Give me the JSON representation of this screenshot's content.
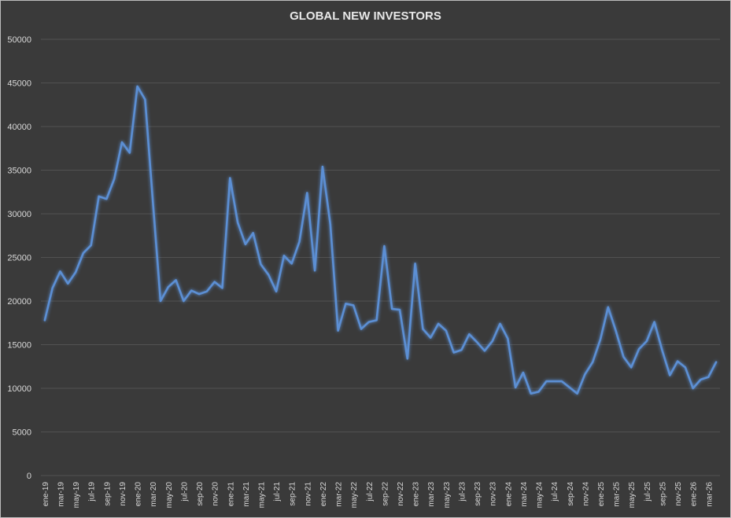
{
  "chart_data": {
    "type": "line",
    "title": "GLOBAL NEW INVESTORS",
    "xlabel": "",
    "ylabel": "",
    "ylim": [
      0,
      50000
    ],
    "y_ticks": [
      0,
      5000,
      10000,
      15000,
      20000,
      25000,
      30000,
      35000,
      40000,
      45000,
      50000
    ],
    "grid": true,
    "legend": "none",
    "line_color": "#5b8fd4",
    "x": [
      "ene-19",
      "feb-19",
      "mar-19",
      "abr-19",
      "may-19",
      "jun-19",
      "jul-19",
      "ago-19",
      "sep-19",
      "oct-19",
      "nov-19",
      "dic-19",
      "ene-20",
      "feb-20",
      "mar-20",
      "abr-20",
      "may-20",
      "jun-20",
      "jul-20",
      "ago-20",
      "sep-20",
      "oct-20",
      "nov-20",
      "dic-20",
      "ene-21",
      "feb-21",
      "mar-21",
      "abr-21",
      "may-21",
      "jun-21",
      "jul-21",
      "ago-21",
      "sep-21",
      "oct-21",
      "nov-21",
      "dic-21",
      "ene-22",
      "feb-22",
      "mar-22",
      "abr-22",
      "may-22",
      "jun-22",
      "jul-22",
      "ago-22",
      "sep-22",
      "oct-22",
      "nov-22",
      "dic-22",
      "ene-23",
      "feb-23",
      "mar-23",
      "abr-23",
      "may-23",
      "jun-23",
      "jul-23",
      "ago-23",
      "sep-23",
      "oct-23",
      "nov-23",
      "dic-23",
      "ene-24",
      "feb-24",
      "mar-24",
      "abr-24",
      "may-24",
      "jun-24",
      "jul-24",
      "ago-24",
      "sep-24",
      "oct-24",
      "nov-24",
      "dic-24",
      "ene-25",
      "feb-25",
      "mar-25",
      "abr-25",
      "may-25",
      "jun-25",
      "jul-25",
      "ago-25",
      "sep-25",
      "oct-25",
      "nov-25",
      "dic-25",
      "ene-26",
      "feb-26",
      "mar-26",
      "abr-26"
    ],
    "x_tick_labels": [
      "ene-19",
      "mar-19",
      "may-19",
      "jul-19",
      "sep-19",
      "nov-19",
      "ene-20",
      "mar-20",
      "may-20",
      "jul-20",
      "sep-20",
      "nov-20",
      "ene-21",
      "mar-21",
      "may-21",
      "jul-21",
      "sep-21",
      "nov-21",
      "ene-22",
      "mar-22",
      "may-22",
      "jul-22",
      "sep-22",
      "nov-22",
      "ene-23",
      "mar-23",
      "may-23",
      "jul-23",
      "sep-23",
      "nov-23",
      "ene-24",
      "mar-24",
      "may-24",
      "jul-24",
      "sep-24",
      "nov-24",
      "ene-25",
      "mar-25",
      "may-25",
      "jul-25",
      "sep-25",
      "nov-25",
      "ene-26",
      "mar-26"
    ],
    "series": [
      {
        "values": [
          17800,
          21500,
          23400,
          22000,
          23300,
          25500,
          26400,
          32000,
          31700,
          34000,
          38200,
          37000,
          44600,
          43100,
          31500,
          20000,
          21600,
          22400,
          20000,
          21200,
          20800,
          21100,
          22200,
          21500,
          34100,
          29000,
          26500,
          27800,
          24200,
          23000,
          21100,
          25200,
          24300,
          26800,
          32400,
          23500,
          35400,
          28800,
          16600,
          19700,
          19500,
          16800,
          17600,
          17800,
          26300,
          19100,
          19000,
          13400,
          24300,
          16800,
          15800,
          17400,
          16600,
          14100,
          14400,
          16200,
          15300,
          14300,
          15400,
          17400,
          15700,
          10100,
          11800,
          9400,
          9600,
          10800,
          10800,
          10800,
          10100,
          9400,
          11600,
          13000,
          15600,
          19300,
          16600,
          13600,
          12400,
          14500,
          15400,
          17600,
          14400,
          11500,
          13100,
          12400,
          10000,
          11000,
          11300,
          13000
        ]
      }
    ]
  }
}
